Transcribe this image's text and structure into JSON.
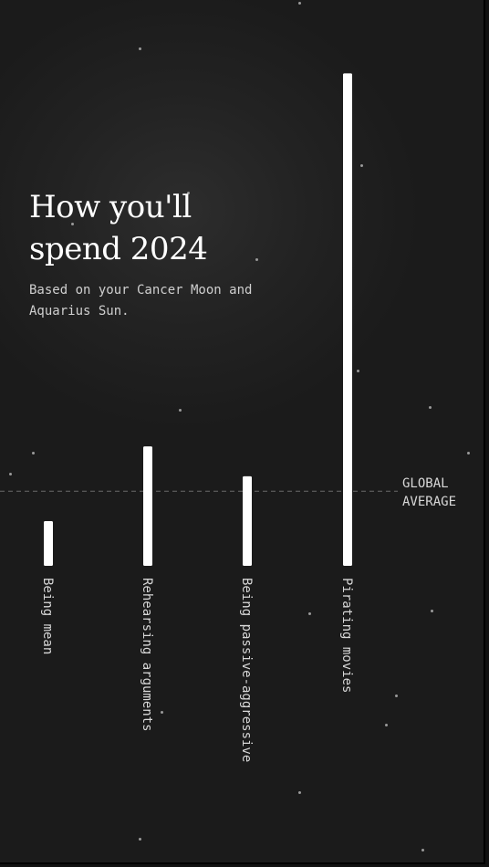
{
  "title": "How you'll spend 2024",
  "subtitle": "Based on your Cancer Moon and Aquarius Sun.",
  "colors": {
    "background": "#1f1f1f",
    "bar": "#ffffff",
    "text": "#d8d8d8",
    "dashed_line": "#6a6a6a"
  },
  "chart_data": {
    "type": "bar",
    "title": "How you'll spend 2024",
    "subtitle": "Based on your Cancer Moon and Aquarius Sun.",
    "categories": [
      "Being mean",
      "Rehearsing arguments",
      "Being passive-aggressive",
      "Pirating movies"
    ],
    "values": [
      0.6,
      1.6,
      1.2,
      6.6
    ],
    "reference_line": {
      "label": "GLOBAL AVERAGE",
      "value": 1.0
    },
    "ylim": [
      0,
      6.8
    ],
    "grid": false,
    "legend": "none",
    "orientation": "vertical bars, rotated category labels"
  }
}
